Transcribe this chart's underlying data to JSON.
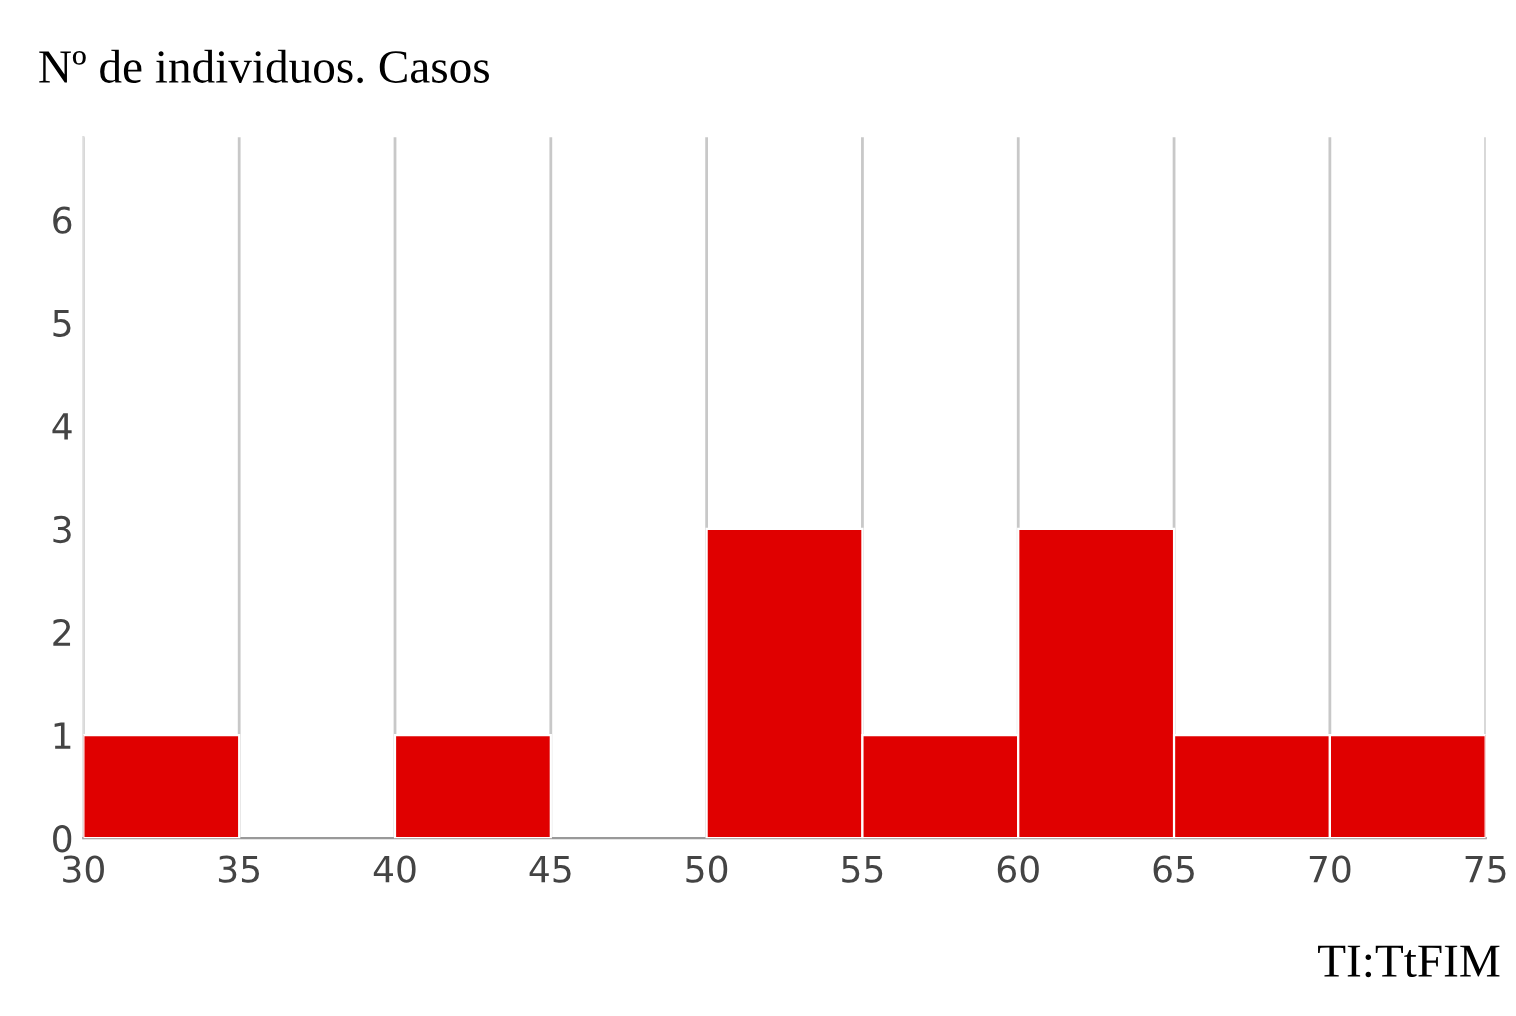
{
  "chart_data": {
    "type": "histogram",
    "title": "Nº de individuos. Casos",
    "xlabel": "TI:TtFIM",
    "bins": [
      30,
      35,
      40,
      45,
      50,
      55,
      60,
      65,
      70,
      75
    ],
    "values": [
      1,
      0,
      1,
      0,
      3,
      1,
      3,
      1,
      1
    ],
    "color": "#e00000",
    "xlim": [
      30,
      75
    ],
    "xticks": [
      30,
      35,
      40,
      45,
      50,
      55,
      60,
      65,
      70,
      75
    ],
    "ylim": [
      0,
      6.8
    ],
    "yticks": [
      0,
      1,
      2,
      3,
      4,
      5,
      6
    ],
    "grid": "x",
    "legend": false
  }
}
